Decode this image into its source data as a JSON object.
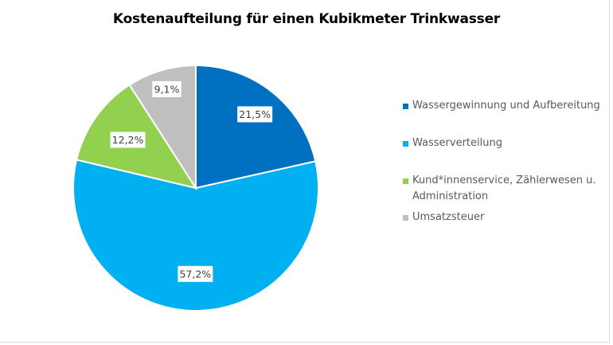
{
  "chart_data": {
    "type": "pie",
    "title": "Kostenaufteilung für einen Kubikmeter Trinkwasser",
    "legend_position": "right",
    "slices": [
      {
        "name": "Wassergewinnung und Aufbereitung",
        "value": 21.5,
        "label": "21,5%",
        "color": "#0070C0"
      },
      {
        "name": "Wasserverteilung",
        "value": 57.2,
        "label": "57,2%",
        "color": "#00B0F0"
      },
      {
        "name": "Kund*innenservice, Zählerwesen u. Administration",
        "value": 12.2,
        "label": "12,2%",
        "color": "#92D050"
      },
      {
        "name": "Umsatzsteuer",
        "value": 9.1,
        "label": "9,1%",
        "color": "#BFBFBF"
      }
    ]
  }
}
